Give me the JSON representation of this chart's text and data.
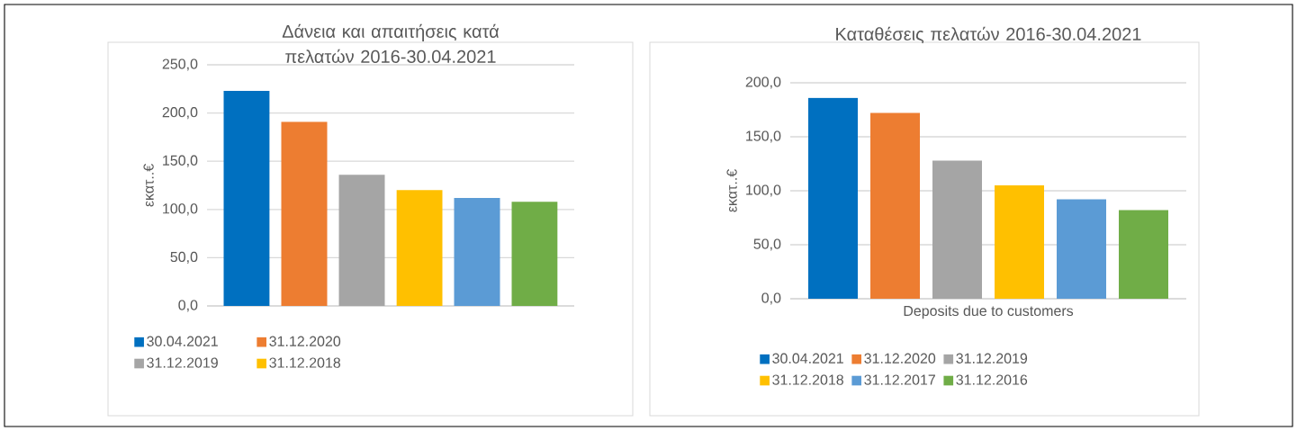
{
  "chart_data": [
    {
      "type": "bar",
      "title": "Δάνεια και απαιτήσεις κατά πελατών 2016-30.04.2021",
      "ylabel": "εκατ..€",
      "categories": [
        null
      ],
      "series": [
        {
          "name": "30.04.2021",
          "color": "#0070c0",
          "values": [
            223
          ]
        },
        {
          "name": "31.12.2020",
          "color": "#ed7d31",
          "values": [
            191
          ]
        },
        {
          "name": "31.12.2019",
          "color": "#a5a5a5",
          "values": [
            136
          ]
        },
        {
          "name": "31.12.2018",
          "color": "#ffc000",
          "values": [
            120
          ]
        },
        {
          "color": "#5b9bd5",
          "values": [
            112
          ]
        },
        {
          "color": "#70ad47",
          "values": [
            108
          ]
        }
      ],
      "ylim": [
        0,
        250
      ],
      "yticks": [
        {
          "value": 0,
          "label": "0,0"
        },
        {
          "value": 50,
          "label": "50,0"
        },
        {
          "value": 100,
          "label": "100,0"
        },
        {
          "value": 150,
          "label": "150,0"
        },
        {
          "value": 200,
          "label": "200,0"
        },
        {
          "value": 250,
          "label": "250,0"
        }
      ],
      "grid": "y",
      "legend": "bottom"
    },
    {
      "type": "bar",
      "title": "Καταθέσεις πελατών 2016-30.04.2021",
      "ylabel": "εκατ..€",
      "categories": [
        "Deposits due to customers"
      ],
      "series": [
        {
          "name": "30.04.2021",
          "color": "#0070c0",
          "values": [
            186
          ]
        },
        {
          "name": "31.12.2020",
          "color": "#ed7d31",
          "values": [
            172
          ]
        },
        {
          "name": "31.12.2019",
          "color": "#a5a5a5",
          "values": [
            128
          ]
        },
        {
          "name": "31.12.2018",
          "color": "#ffc000",
          "values": [
            105
          ]
        },
        {
          "name": "31.12.2017",
          "color": "#5b9bd5",
          "values": [
            92
          ]
        },
        {
          "name": "31.12.2016",
          "color": "#70ad47",
          "values": [
            82
          ]
        }
      ],
      "ylim": [
        0,
        200
      ],
      "yticks": [
        {
          "value": 0,
          "label": "0,0"
        },
        {
          "value": 50,
          "label": "50,0"
        },
        {
          "value": 100,
          "label": "100,0"
        },
        {
          "value": 150,
          "label": "150,0"
        },
        {
          "value": 200,
          "label": "200,0"
        }
      ],
      "grid": "y",
      "legend": "bottom"
    }
  ]
}
